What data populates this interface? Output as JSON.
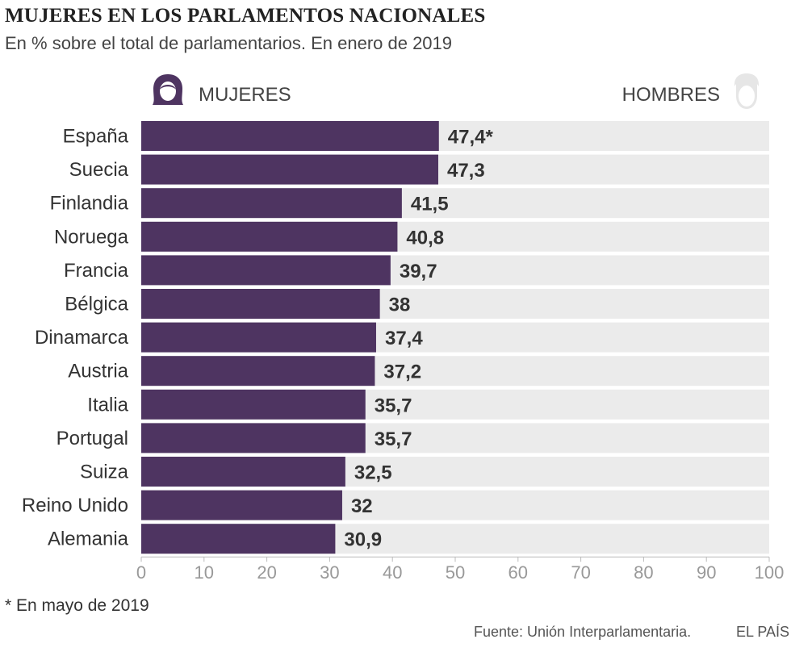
{
  "header": {
    "title": "MUJERES EN LOS PARLAMENTOS NACIONALES",
    "subtitle": "En % sobre el total de parlamentarios. En enero de 2019"
  },
  "legend": {
    "women_label": "MUJERES",
    "men_label": "HOMBRES",
    "women_icon": "woman-icon",
    "men_icon": "man-icon"
  },
  "colors": {
    "bar": "#4e3461",
    "track": "#ebebeb",
    "axis": "#bbbbbb"
  },
  "footer": {
    "footnote": "* En mayo de 2019",
    "source": "Fuente: Unión Interparlamentaria.",
    "brand": "EL PAÍS"
  },
  "chart_data": {
    "type": "bar",
    "orientation": "horizontal",
    "title": "MUJERES EN LOS PARLAMENTOS NACIONALES",
    "xlim": [
      0,
      100
    ],
    "ticks": [
      "0",
      "10",
      "20",
      "30",
      "40",
      "50",
      "60",
      "70",
      "80",
      "90",
      "100"
    ],
    "categories": [
      "España",
      "Suecia",
      "Finlandia",
      "Noruega",
      "Francia",
      "Bélgica",
      "Dinamarca",
      "Austria",
      "Italia",
      "Portugal",
      "Suiza",
      "Reino Unido",
      "Alemania"
    ],
    "values": [
      47.4,
      47.3,
      41.5,
      40.8,
      39.7,
      38,
      37.4,
      37.2,
      35.7,
      35.7,
      32.5,
      32,
      30.9
    ],
    "labels": [
      "47,4*",
      "47,3",
      "41,5",
      "40,8",
      "39,7",
      "38",
      "37,4",
      "37,2",
      "35,7",
      "35,7",
      "32,5",
      "32",
      "30,9"
    ]
  }
}
